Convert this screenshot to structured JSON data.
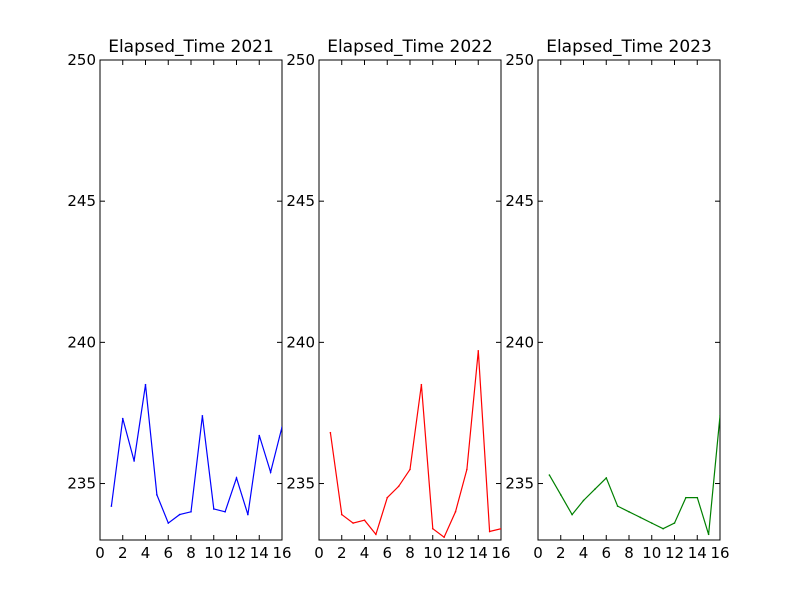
{
  "chart_data": [
    {
      "type": "line",
      "title": "Elapsed_Time 2021",
      "color": "#0000ff",
      "xlim": [
        0,
        16
      ],
      "ylim": [
        233,
        250
      ],
      "xticks": [
        "0",
        "2",
        "4",
        "6",
        "8",
        "10",
        "12",
        "14",
        "16"
      ],
      "yticks": [
        "235",
        "240",
        "245",
        "250"
      ],
      "x": [
        1,
        2,
        3,
        4,
        5,
        6,
        7,
        8,
        9,
        10,
        11,
        12,
        13,
        14,
        15,
        16
      ],
      "values": [
        234.2,
        237.3,
        235.8,
        238.5,
        234.6,
        233.6,
        233.9,
        234.0,
        237.4,
        234.1,
        234.0,
        235.2,
        233.9,
        236.7,
        235.4,
        237.0
      ]
    },
    {
      "type": "line",
      "title": "Elapsed_Time 2022",
      "color": "#ff0000",
      "xlim": [
        0,
        16
      ],
      "ylim": [
        233,
        250
      ],
      "xticks": [
        "0",
        "2",
        "4",
        "6",
        "8",
        "10",
        "12",
        "14",
        "16"
      ],
      "yticks": [
        "235",
        "240",
        "245",
        "250"
      ],
      "x": [
        1,
        2,
        3,
        4,
        5,
        6,
        7,
        8,
        9,
        10,
        11,
        12,
        13,
        14,
        15,
        16
      ],
      "values": [
        236.8,
        233.9,
        233.6,
        233.7,
        233.2,
        234.5,
        234.9,
        235.5,
        238.5,
        233.4,
        233.1,
        234.0,
        235.5,
        239.7,
        233.3,
        233.4
      ]
    },
    {
      "type": "line",
      "title": "Elapsed_Time 2023",
      "color": "#008000",
      "xlim": [
        0,
        16
      ],
      "ylim": [
        233,
        250
      ],
      "xticks": [
        "0",
        "2",
        "4",
        "6",
        "8",
        "10",
        "12",
        "14",
        "16"
      ],
      "yticks": [
        "235",
        "240",
        "245",
        "250"
      ],
      "x": [
        1,
        2,
        3,
        4,
        5,
        6,
        7,
        8,
        9,
        10,
        11,
        12,
        13,
        14,
        15,
        16
      ],
      "values": [
        235.3,
        234.6,
        233.9,
        234.4,
        234.8,
        235.2,
        234.2,
        234.0,
        233.8,
        233.6,
        233.4,
        233.6,
        234.5,
        234.5,
        233.2,
        237.4
      ]
    }
  ]
}
